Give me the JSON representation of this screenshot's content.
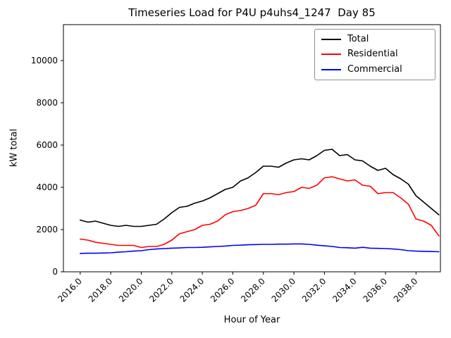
{
  "chart_data": {
    "type": "line",
    "title": "Timeseries Load for P4U p4uhs4_1247  Day 85",
    "xlabel": "Hour of Year",
    "ylabel": "kW total",
    "xlim": [
      2014.9,
      2039.6
    ],
    "ylim": [
      0,
      11700
    ],
    "grid": false,
    "legend_position": "upper right",
    "xticks": [
      2016,
      2018,
      2020,
      2022,
      2024,
      2026,
      2028,
      2030,
      2032,
      2034,
      2036,
      2038
    ],
    "xtick_labels": [
      "2016.0",
      "2018.0",
      "2020.0",
      "2022.0",
      "2024.0",
      "2026.0",
      "2028.0",
      "2030.0",
      "2032.0",
      "2034.0",
      "2036.0",
      "2038.0"
    ],
    "yticks": [
      0,
      2000,
      4000,
      6000,
      8000,
      10000
    ],
    "ytick_labels": [
      "0",
      "2000",
      "4000",
      "6000",
      "8000",
      "10000"
    ],
    "x": [
      2016.0,
      2016.5,
      2017.0,
      2017.5,
      2018.0,
      2018.5,
      2019.0,
      2019.5,
      2020.0,
      2020.5,
      2021.0,
      2021.5,
      2022.0,
      2022.5,
      2023.0,
      2023.5,
      2024.0,
      2024.5,
      2025.0,
      2025.5,
      2026.0,
      2026.5,
      2027.0,
      2027.5,
      2028.0,
      2028.5,
      2029.0,
      2029.5,
      2030.0,
      2030.5,
      2031.0,
      2031.5,
      2032.0,
      2032.5,
      2033.0,
      2033.5,
      2034.0,
      2034.5,
      2035.0,
      2035.5,
      2036.0,
      2036.5,
      2037.0,
      2037.5,
      2038.0,
      2038.5,
      2039.0,
      2039.5
    ],
    "series": [
      {
        "name": "Total",
        "color": "#000000",
        "values": [
          2450,
          2350,
          2400,
          2300,
          2200,
          2150,
          2200,
          2150,
          2150,
          2200,
          2250,
          2500,
          2800,
          3050,
          3100,
          3250,
          3350,
          3500,
          3700,
          3900,
          4000,
          4300,
          4450,
          4700,
          5000,
          5000,
          4950,
          5150,
          5300,
          5350,
          5300,
          5500,
          5750,
          5800,
          5500,
          5550,
          5300,
          5250,
          5000,
          4800,
          4900,
          4600,
          4400,
          4150,
          3600,
          3300,
          3000,
          2700
        ]
      },
      {
        "name": "Residential",
        "color": "#ff0000",
        "values": [
          1550,
          1500,
          1400,
          1350,
          1300,
          1250,
          1250,
          1250,
          1150,
          1200,
          1200,
          1300,
          1500,
          1800,
          1900,
          2000,
          2200,
          2250,
          2400,
          2700,
          2850,
          2900,
          3000,
          3150,
          3700,
          3700,
          3650,
          3750,
          3800,
          4000,
          3950,
          4100,
          4450,
          4500,
          4400,
          4300,
          4350,
          4100,
          4050,
          3700,
          3750,
          3750,
          3500,
          3200,
          2500,
          2400,
          2200,
          1700
        ]
      },
      {
        "name": "Commercial",
        "color": "#0000ff",
        "values": [
          870,
          880,
          880,
          890,
          900,
          930,
          950,
          980,
          1000,
          1050,
          1080,
          1100,
          1120,
          1130,
          1150,
          1150,
          1160,
          1180,
          1200,
          1220,
          1250,
          1260,
          1280,
          1290,
          1300,
          1300,
          1310,
          1310,
          1320,
          1320,
          1300,
          1260,
          1230,
          1200,
          1150,
          1140,
          1120,
          1160,
          1120,
          1110,
          1100,
          1080,
          1050,
          1000,
          980,
          970,
          960,
          950
        ]
      }
    ]
  }
}
